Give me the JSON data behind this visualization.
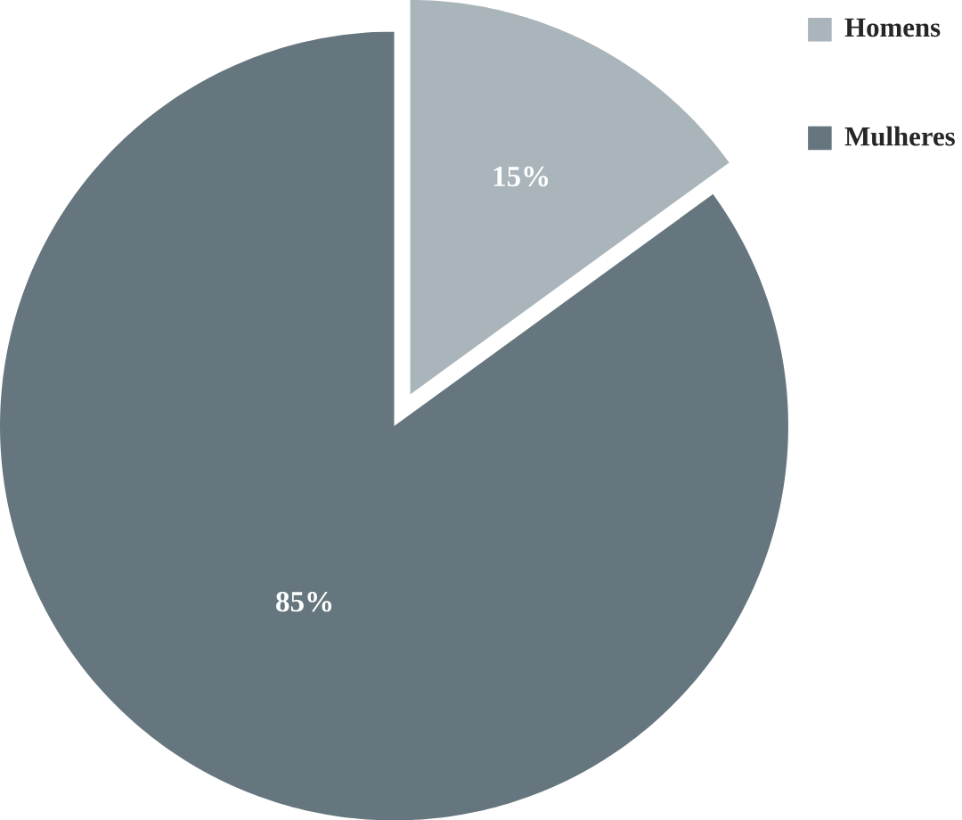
{
  "chart_data": {
    "type": "pie",
    "categories": [
      "Homens",
      "Mulheres"
    ],
    "values": [
      15,
      85
    ],
    "colors": [
      "#a9b4bb",
      "#65767e"
    ],
    "value_labels": [
      "15%",
      "85%"
    ],
    "legend": "top right"
  }
}
